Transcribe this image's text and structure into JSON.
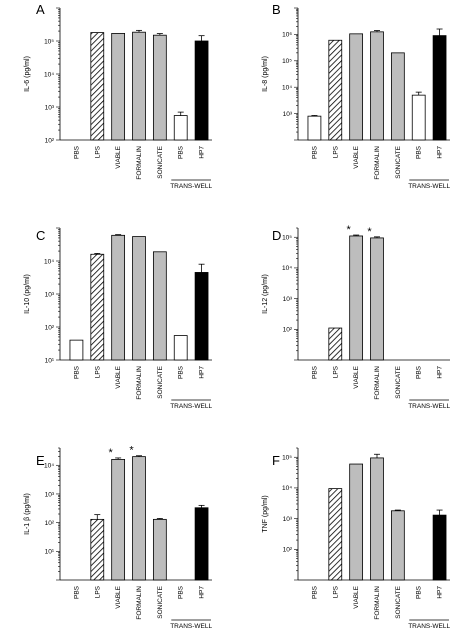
{
  "figure": {
    "categories": [
      "PBS",
      "LPS",
      "VIABLE",
      "FORMALIN",
      "SONICATE",
      "PBS",
      "HP7"
    ],
    "group_label": "TRANS-WELL",
    "bar_styles": [
      "white",
      "hatched",
      "gray",
      "gray",
      "gray",
      "white",
      "black"
    ],
    "colors": {
      "gray": "#bdbdbd",
      "black": "#000000",
      "white": "#ffffff"
    }
  },
  "chart_data": [
    {
      "type": "bar",
      "panel": "A",
      "ylabel": "IL-6 (pg/ml)",
      "scale": "log",
      "ylim": [
        100,
        1000000
      ],
      "yticks": [
        100,
        1000,
        10000,
        100000
      ],
      "ytick_labels": [
        "10²",
        "10³",
        "10⁴",
        "10⁵"
      ],
      "categories": [
        "PBS",
        "LPS",
        "VIABLE",
        "FORMALIN",
        "SONICATE",
        "PBS",
        "HP7"
      ],
      "values": [
        null,
        180000,
        170000,
        185000,
        150000,
        550,
        100000
      ],
      "errors": [
        null,
        0,
        0,
        25000,
        18000,
        150,
        45000
      ],
      "stars": [
        false,
        false,
        false,
        false,
        false,
        false,
        false
      ]
    },
    {
      "type": "bar",
      "panel": "B",
      "ylabel": "IL-8 (pg/ml)",
      "scale": "log",
      "ylim": [
        100,
        10000000
      ],
      "yticks": [
        1000,
        10000,
        100000,
        1000000
      ],
      "ytick_labels": [
        "10³",
        "10⁴",
        "10⁵",
        "10⁶"
      ],
      "categories": [
        "PBS",
        "LPS",
        "VIABLE",
        "FORMALIN",
        "SONICATE",
        "PBS",
        "HP7"
      ],
      "values": [
        800,
        600000,
        1050000,
        1250000,
        200000,
        5000,
        900000
      ],
      "errors": [
        50,
        0,
        0,
        150000,
        0,
        1500,
        700000
      ],
      "stars": [
        false,
        false,
        false,
        false,
        false,
        false,
        false
      ]
    },
    {
      "type": "bar",
      "panel": "C",
      "ylabel": "IL-10 (pg/ml)",
      "scale": "log",
      "ylim": [
        10,
        100000
      ],
      "yticks": [
        10,
        100,
        1000,
        10000
      ],
      "ytick_labels": [
        "10¹",
        "10²",
        "10³",
        "10⁴"
      ],
      "categories": [
        "PBS",
        "LPS",
        "VIABLE",
        "FORMALIN",
        "SONICATE",
        "PBS",
        "HP7"
      ],
      "values": [
        40,
        16000,
        60000,
        55000,
        19000,
        55,
        4500
      ],
      "errors": [
        0,
        1000,
        3000,
        0,
        0,
        0,
        3500
      ],
      "stars": [
        false,
        false,
        false,
        false,
        false,
        false,
        false
      ]
    },
    {
      "type": "bar",
      "panel": "D",
      "ylabel": "IL-12 (pg/ml)",
      "scale": "log",
      "ylim": [
        10,
        200000
      ],
      "yticks": [
        100,
        1000,
        10000,
        100000
      ],
      "ytick_labels": [
        "10²",
        "10³",
        "10⁴",
        "10⁵"
      ],
      "categories": [
        "PBS",
        "LPS",
        "VIABLE",
        "FORMALIN",
        "SONICATE",
        "PBS",
        "HP7"
      ],
      "values": [
        null,
        110,
        110000,
        95000,
        null,
        null,
        null
      ],
      "errors": [
        null,
        0,
        8000,
        8000,
        null,
        null,
        null
      ],
      "stars": [
        false,
        false,
        true,
        true,
        false,
        false,
        false
      ]
    },
    {
      "type": "bar",
      "panel": "E",
      "ylabel": "IL-1 β (pg/ml)",
      "scale": "log",
      "ylim": [
        1,
        40000
      ],
      "yticks": [
        10,
        100,
        1000,
        10000
      ],
      "ytick_labels": [
        "10¹",
        "10²",
        "10³",
        "10⁴"
      ],
      "categories": [
        "PBS",
        "LPS",
        "VIABLE",
        "FORMALIN",
        "SONICATE",
        "PBS",
        "HP7"
      ],
      "values": [
        null,
        130,
        16000,
        20000,
        130,
        null,
        330
      ],
      "errors": [
        null,
        60,
        2000,
        1500,
        10,
        null,
        70
      ],
      "stars": [
        false,
        false,
        true,
        true,
        false,
        false,
        false
      ]
    },
    {
      "type": "bar",
      "panel": "F",
      "ylabel": "TNF (pg/ml)",
      "scale": "log",
      "ylim": [
        10,
        200000
      ],
      "yticks": [
        100,
        1000,
        10000,
        100000
      ],
      "ytick_labels": [
        "10²",
        "10³",
        "10⁴",
        "10⁵"
      ],
      "categories": [
        "PBS",
        "LPS",
        "VIABLE",
        "FORMALIN",
        "SONICATE",
        "PBS",
        "HP7"
      ],
      "values": [
        null,
        9500,
        60000,
        95000,
        1800,
        null,
        1300
      ],
      "errors": [
        null,
        0,
        0,
        30000,
        100,
        null,
        600
      ],
      "stars": [
        false,
        false,
        false,
        false,
        false,
        false,
        false
      ]
    }
  ]
}
